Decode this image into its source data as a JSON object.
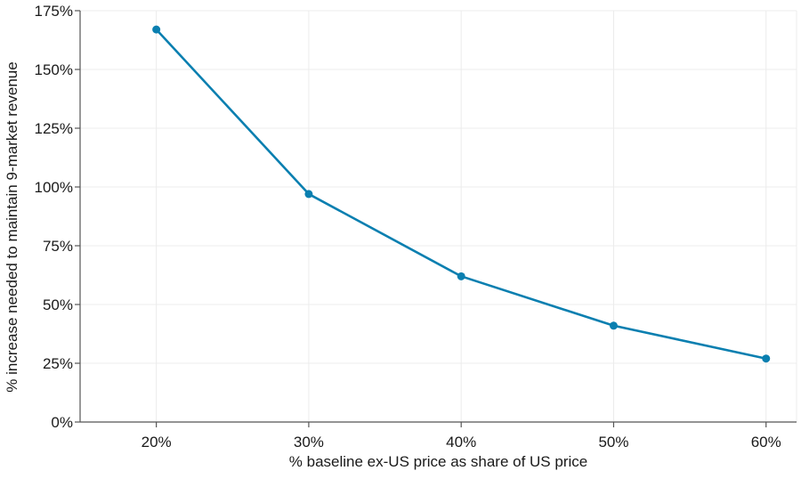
{
  "chart_data": {
    "type": "line",
    "title": "",
    "xlabel": "% baseline ex-US price as share of US price",
    "ylabel": "% increase needed to maintain 9-market revenue",
    "categories": [
      "20%",
      "30%",
      "40%",
      "50%",
      "60%"
    ],
    "x": [
      20,
      30,
      40,
      50,
      60
    ],
    "series": [
      {
        "values": [
          167,
          97,
          62,
          41,
          27
        ]
      }
    ],
    "y_ticks": [
      0,
      25,
      50,
      75,
      100,
      125,
      150,
      175
    ],
    "y_tick_labels": [
      "0%",
      "25%",
      "50%",
      "75%",
      "100%",
      "125%",
      "150%",
      "175%"
    ],
    "ylim": [
      0,
      175
    ],
    "xlim": [
      15,
      62
    ],
    "grid": true,
    "legend": "none",
    "color": "#0a7fb0"
  }
}
